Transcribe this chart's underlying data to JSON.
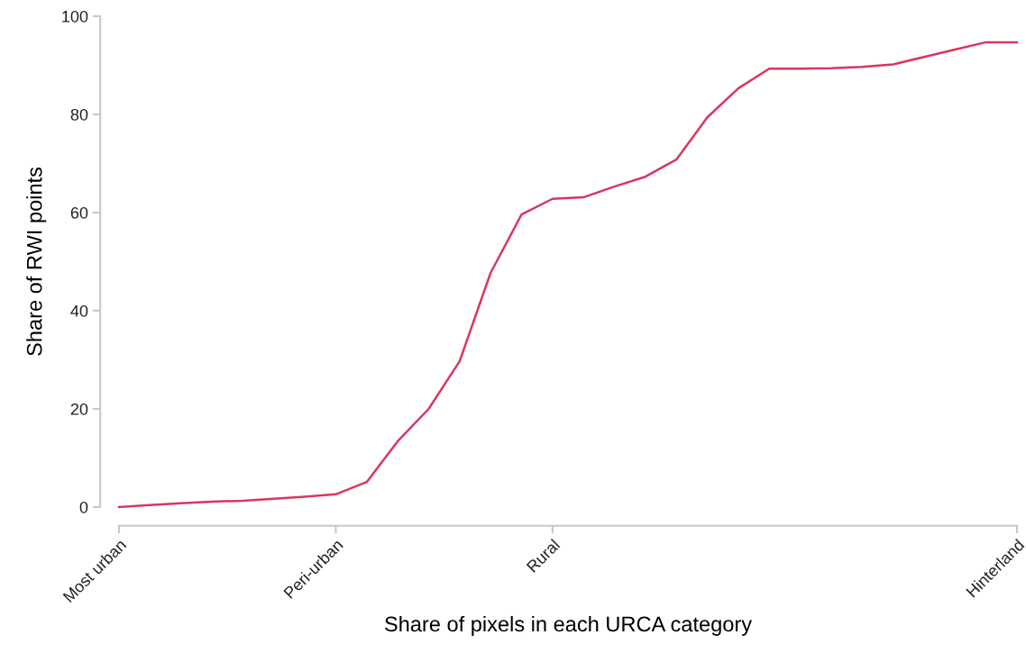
{
  "chart_data": {
    "type": "line",
    "xlabel": "Share of pixels in each URCA category",
    "ylabel": "Share of RWI points",
    "categories": [
      "Most urban",
      null,
      null,
      null,
      null,
      null,
      null,
      "Peri-urban",
      null,
      null,
      null,
      null,
      null,
      null,
      "Rural",
      null,
      null,
      null,
      null,
      null,
      null,
      null,
      null,
      null,
      null,
      null,
      null,
      null,
      null,
      "Hinterland"
    ],
    "series": [
      {
        "color": "#d9365f",
        "values": [
          0,
          0.4,
          0.8,
          1.1,
          1.3,
          1.7,
          2.1,
          2.6,
          5.1,
          13.4,
          20.0,
          29.7,
          47.7,
          59.6,
          62.8,
          63.1,
          65.3,
          67.3,
          70.8,
          79.4,
          85.3,
          89.3,
          89.3,
          89.4,
          89.7,
          90.2,
          91.7,
          93.2,
          94.7,
          94.7
        ]
      }
    ],
    "ylim": [
      0,
      100
    ],
    "yticks": [
      0,
      20,
      40,
      60,
      80,
      100
    ],
    "grid": false,
    "legend": false,
    "marker": "none",
    "line_style": "solid"
  }
}
